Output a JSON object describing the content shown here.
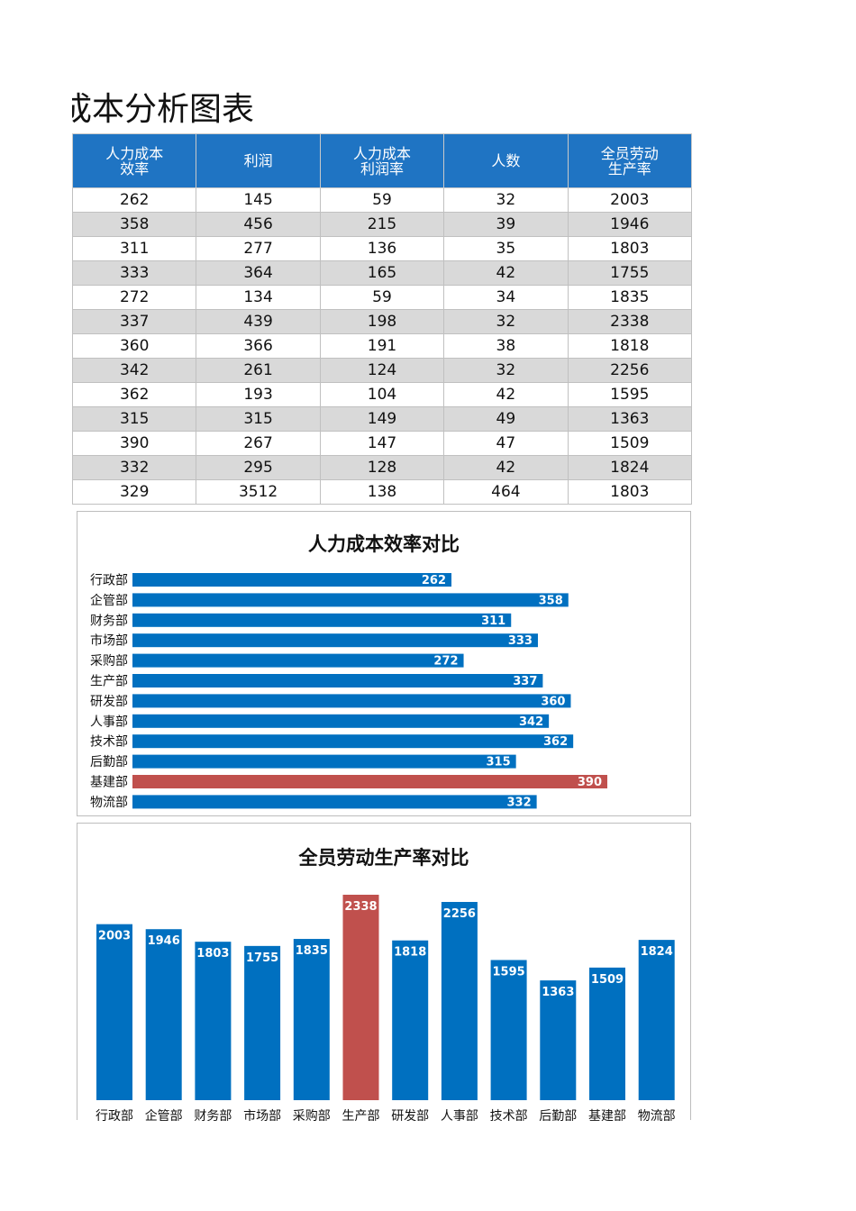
{
  "page": {
    "title": "成本分析图表"
  },
  "table": {
    "headers": [
      "人力成本\n效率",
      "利润",
      "人力成本\n利润率",
      "人数",
      "全员劳动\n生产率"
    ],
    "rows": [
      [
        "262",
        "145",
        "59",
        "32",
        "2003"
      ],
      [
        "358",
        "456",
        "215",
        "39",
        "1946"
      ],
      [
        "311",
        "277",
        "136",
        "35",
        "1803"
      ],
      [
        "333",
        "364",
        "165",
        "42",
        "1755"
      ],
      [
        "272",
        "134",
        "59",
        "34",
        "1835"
      ],
      [
        "337",
        "439",
        "198",
        "32",
        "2338"
      ],
      [
        "360",
        "366",
        "191",
        "38",
        "1818"
      ],
      [
        "342",
        "261",
        "124",
        "32",
        "2256"
      ],
      [
        "362",
        "193",
        "104",
        "42",
        "1595"
      ],
      [
        "315",
        "315",
        "149",
        "49",
        "1363"
      ],
      [
        "390",
        "267",
        "147",
        "47",
        "1509"
      ],
      [
        "332",
        "295",
        "128",
        "42",
        "1824"
      ],
      [
        "329",
        "3512",
        "138",
        "464",
        "1803"
      ]
    ]
  },
  "chart_data": [
    {
      "type": "bar",
      "orientation": "horizontal",
      "title": "人力成本效率对比",
      "categories": [
        "行政部",
        "企管部",
        "财务部",
        "市场部",
        "采购部",
        "生产部",
        "研发部",
        "人事部",
        "技术部",
        "后勤部",
        "基建部",
        "物流部"
      ],
      "values": [
        262,
        358,
        311,
        333,
        272,
        337,
        360,
        342,
        362,
        315,
        390,
        332
      ],
      "colors": {
        "default": "#0070c0",
        "highlight": "#c0504d"
      },
      "highlight_index": 10,
      "data_labels": true,
      "grid": false
    },
    {
      "type": "bar",
      "orientation": "vertical",
      "title": "全员劳动生产率对比",
      "categories": [
        "行政部",
        "企管部",
        "财务部",
        "市场部",
        "采购部",
        "生产部",
        "研发部",
        "人事部",
        "技术部",
        "后勤部",
        "基建部",
        "物流部"
      ],
      "values": [
        2003,
        1946,
        1803,
        1755,
        1835,
        2338,
        1818,
        2256,
        1595,
        1363,
        1509,
        1824
      ],
      "colors": {
        "default": "#0070c0",
        "highlight": "#c0504d"
      },
      "highlight_index": 5,
      "data_labels": true,
      "grid": false
    }
  ]
}
